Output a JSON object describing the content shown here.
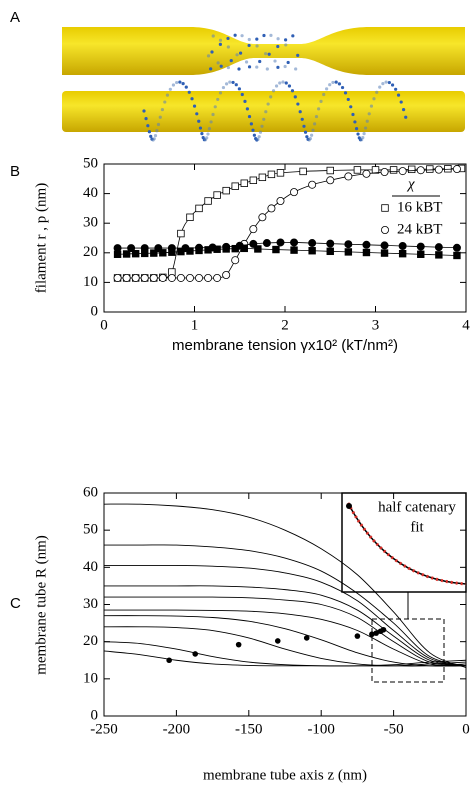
{
  "panels": [
    "A",
    "B",
    "C"
  ],
  "chart_data": [
    {
      "type": "scatter-line",
      "xlabel": "membrane tension  γx10²  (kT/nm²)",
      "ylabel": "filament  r , p  (nm)",
      "xlim": [
        0,
        4
      ],
      "xticks": [
        0,
        1,
        2,
        3,
        4
      ],
      "ylim": [
        0,
        50
      ],
      "yticks": [
        0,
        10,
        20,
        30,
        40,
        50
      ],
      "legend_title": "χ",
      "series": [
        {
          "name": "16 kBT",
          "marker": "square",
          "filled": false,
          "x": [
            0.15,
            0.25,
            0.35,
            0.45,
            0.55,
            0.65,
            0.75,
            0.85,
            0.95,
            1.05,
            1.15,
            1.25,
            1.35,
            1.45,
            1.55,
            1.65,
            1.75,
            1.85,
            1.95,
            2.2,
            2.5,
            2.8,
            3.0,
            3.2,
            3.4,
            3.6,
            3.8,
            3.95
          ],
          "values": [
            11.5,
            11.5,
            11.5,
            11.5,
            11.5,
            11.7,
            13.5,
            26.5,
            32,
            35,
            37.5,
            39.5,
            41,
            42.5,
            43.5,
            44.5,
            45.5,
            46.5,
            47,
            47.5,
            47.8,
            48,
            48,
            48,
            48.2,
            48.3,
            48.4,
            48.5
          ]
        },
        {
          "name": "24 kBT",
          "marker": "circle",
          "filled": false,
          "x": [
            0.15,
            0.25,
            0.35,
            0.45,
            0.55,
            0.65,
            0.75,
            0.85,
            0.95,
            1.05,
            1.15,
            1.25,
            1.35,
            1.45,
            1.55,
            1.65,
            1.75,
            1.85,
            1.95,
            2.1,
            2.3,
            2.5,
            2.7,
            2.9,
            3.1,
            3.3,
            3.5,
            3.7,
            3.9
          ],
          "values": [
            11.5,
            11.5,
            11.5,
            11.5,
            11.5,
            11.5,
            11.5,
            11.5,
            11.5,
            11.5,
            11.5,
            11.5,
            12.5,
            17.5,
            23,
            28,
            32,
            35,
            37.5,
            40.5,
            43,
            44.5,
            45.8,
            46.7,
            47.3,
            47.6,
            47.9,
            48.1,
            48.3
          ]
        },
        {
          "marker": "square",
          "filled": true,
          "x": [
            0.15,
            0.25,
            0.35,
            0.45,
            0.55,
            0.65,
            0.75,
            0.85,
            0.95,
            1.05,
            1.15,
            1.25,
            1.35,
            1.45,
            1.55,
            1.7,
            1.9,
            2.1,
            2.3,
            2.5,
            2.7,
            2.9,
            3.1,
            3.3,
            3.5,
            3.7,
            3.9
          ],
          "values": [
            19.5,
            19.6,
            19.7,
            19.8,
            19.9,
            20,
            20.2,
            20.4,
            20.6,
            20.8,
            21,
            21.2,
            21.3,
            21.4,
            21.5,
            21.3,
            21.1,
            20.9,
            20.7,
            20.5,
            20.3,
            20.1,
            19.9,
            19.7,
            19.5,
            19.3,
            19.1
          ]
        },
        {
          "marker": "circle",
          "filled": true,
          "x": [
            0.15,
            0.3,
            0.45,
            0.6,
            0.75,
            0.9,
            1.05,
            1.2,
            1.35,
            1.5,
            1.65,
            1.8,
            1.95,
            2.1,
            2.3,
            2.5,
            2.7,
            2.9,
            3.1,
            3.3,
            3.5,
            3.7,
            3.9
          ],
          "values": [
            21.6,
            21.6,
            21.6,
            21.6,
            21.6,
            21.6,
            21.7,
            21.8,
            22,
            22.4,
            23,
            23.3,
            23.5,
            23.5,
            23.3,
            23.1,
            22.9,
            22.7,
            22.5,
            22.3,
            22.1,
            21.9,
            21.7
          ]
        }
      ]
    },
    {
      "type": "line",
      "xlabel": "membrane tube axis  z  (nm)",
      "ylabel": "membrane tube  R  (nm)",
      "xlim": [
        -250,
        0
      ],
      "xticks": [
        -250,
        -200,
        -150,
        -100,
        -50,
        0
      ],
      "ylim": [
        0,
        60
      ],
      "yticks": [
        0,
        10,
        20,
        30,
        40,
        50,
        60
      ],
      "inset_label": [
        "half catenary",
        "fit"
      ],
      "x": [
        -250,
        -225,
        -200,
        -175,
        -150,
        -125,
        -100,
        -75,
        -50,
        -25,
        0
      ],
      "series": [
        {
          "values": [
            57,
            57,
            56.5,
            55.5,
            53.5,
            50,
            45,
            38,
            28,
            17,
            13
          ]
        },
        {
          "values": [
            46,
            46,
            46,
            45.5,
            44.5,
            42.5,
            39,
            33,
            25,
            16,
            13.5
          ]
        },
        {
          "values": [
            40.5,
            40.5,
            40.5,
            40.3,
            39.8,
            38.5,
            36,
            31,
            23,
            15.5,
            13.5
          ]
        },
        {
          "values": [
            35,
            35,
            35,
            35,
            34.7,
            34,
            32.5,
            28.5,
            21.5,
            15,
            13.5
          ]
        },
        {
          "values": [
            32,
            32,
            32,
            32,
            31.8,
            31.2,
            30,
            26.5,
            20,
            14.5,
            13.5
          ]
        },
        {
          "values": [
            28.5,
            28.5,
            28.5,
            28.4,
            28.2,
            27.5,
            26,
            23,
            18,
            14,
            13.5
          ]
        },
        {
          "values": [
            27,
            27,
            26.9,
            26.5,
            25.5,
            23.5,
            20.5,
            17,
            14.5,
            13.5,
            13.5
          ]
        },
        {
          "values": [
            24,
            24,
            23.8,
            23,
            21,
            18,
            15.5,
            14,
            13.5,
            13.5,
            14
          ]
        },
        {
          "values": [
            20,
            19.5,
            18,
            16,
            14.5,
            13.8,
            13.5,
            13.5,
            13.5,
            14,
            14.5
          ]
        },
        {
          "values": [
            17.5,
            16.5,
            15,
            14,
            13.6,
            13.5,
            13.5,
            13.5,
            13.8,
            14.5,
            15
          ]
        }
      ],
      "points": {
        "x": [
          -205,
          -187,
          -157,
          -130,
          -110,
          -75,
          -65,
          -62,
          -59,
          -57
        ],
        "values": [
          15,
          16.7,
          19.2,
          20.2,
          21,
          21.5,
          22,
          22.3,
          22.8,
          23.2
        ]
      }
    }
  ]
}
